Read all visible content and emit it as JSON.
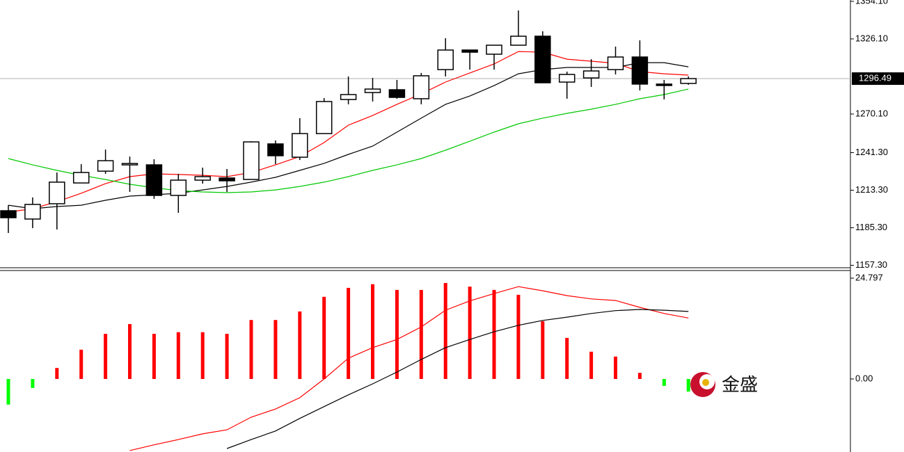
{
  "chart_data": [
    {
      "type": "candlestick",
      "up_color": "#ffffff",
      "down_color": "#000000",
      "open": [
        1198.0,
        1191.8,
        1203.2,
        1218.7,
        1227.5,
        1232.2,
        1232.2,
        1209.4,
        1220.8,
        1222.4,
        1221.3,
        1247.8,
        1237.9,
        1255.5,
        1280.9,
        1286.1,
        1288.2,
        1281.5,
        1303.2,
        1317.8,
        1314.7,
        1321.4,
        1328.1,
        1293.9,
        1297.0,
        1303.2,
        1312.6,
        1292.4,
        1292.9
      ],
      "high": [
        1202.1,
        1207.9,
        1226.5,
        1232.7,
        1243.6,
        1238.4,
        1236.4,
        1225.5,
        1230.1,
        1229.1,
        1249.8,
        1250.4,
        1267.0,
        1282.0,
        1298.1,
        1297.0,
        1295.5,
        1300.7,
        1326.6,
        1317.8,
        1321.4,
        1347.3,
        1331.8,
        1301.7,
        1311.0,
        1320.4,
        1325.0,
        1295.5,
        1298.1
      ],
      "low": [
        1181.4,
        1185.0,
        1184.0,
        1218.7,
        1225.5,
        1212.0,
        1206.8,
        1196.4,
        1218.2,
        1212.0,
        1221.3,
        1232.7,
        1235.8,
        1255.5,
        1277.3,
        1279.4,
        1281.5,
        1277.3,
        1298.1,
        1303.2,
        1303.2,
        1321.4,
        1293.4,
        1281.5,
        1290.3,
        1299.6,
        1287.7,
        1281.0,
        1291.9
      ],
      "close": [
        1192.8,
        1202.7,
        1219.3,
        1226.5,
        1235.3,
        1233.2,
        1209.4,
        1220.8,
        1223.4,
        1220.3,
        1249.3,
        1239.0,
        1255.5,
        1279.4,
        1284.6,
        1288.7,
        1282.5,
        1298.6,
        1317.8,
        1316.2,
        1321.4,
        1328.1,
        1293.4,
        1299.6,
        1302.2,
        1312.6,
        1292.4,
        1291.8,
        1296.5
      ],
      "series": [
        {
          "color": "#ff0000",
          "values": [
            1197.0,
            1199.5,
            1204.7,
            1211.0,
            1218.2,
            1223.4,
            1225.5,
            1225.0,
            1224.4,
            1223.4,
            1226.5,
            1232.2,
            1238.4,
            1248.8,
            1261.8,
            1269.0,
            1277.3,
            1285.1,
            1293.9,
            1300.7,
            1307.4,
            1316.7,
            1316.2,
            1311.0,
            1309.5,
            1307.9,
            1301.7,
            1300.1,
            1299.1
          ]
        },
        {
          "color": "#000000",
          "values": [
            1202.1,
            1199.5,
            1201.1,
            1202.1,
            1205.8,
            1208.9,
            1209.9,
            1211.0,
            1213.5,
            1216.1,
            1219.3,
            1222.9,
            1228.1,
            1233.3,
            1240.0,
            1246.2,
            1256.6,
            1267.0,
            1277.3,
            1283.5,
            1291.3,
            1300.1,
            1303.2,
            1304.8,
            1304.8,
            1304.8,
            1308.4,
            1308.4,
            1305.3
          ]
        },
        {
          "color": "#00c800",
          "values": [
            1236.9,
            1232.2,
            1228.1,
            1224.4,
            1221.3,
            1217.7,
            1215.1,
            1213.0,
            1212.0,
            1211.5,
            1212.0,
            1213.5,
            1216.1,
            1219.3,
            1223.4,
            1228.1,
            1232.2,
            1236.9,
            1243.1,
            1249.8,
            1256.6,
            1262.8,
            1267.0,
            1270.6,
            1273.7,
            1277.3,
            1281.5,
            1284.6,
            1288.7
          ]
        }
      ],
      "last_price": 1296.49,
      "ylim": [
        1155.5,
        1355.1
      ],
      "yticks": [
        {
          "value": 1157.3,
          "label": "1157.30"
        },
        {
          "value": 1185.3,
          "label": "1185.30"
        },
        {
          "value": 1213.3,
          "label": "1213.30"
        },
        {
          "value": 1241.3,
          "label": "1241.30"
        },
        {
          "value": 1270.1,
          "label": "1270.10"
        },
        {
          "value": 1326.1,
          "label": "1326.10"
        },
        {
          "value": 1354.1,
          "label": "1354.10"
        }
      ]
    },
    {
      "type": "macd",
      "color": "#ff0000",
      "negative_color": "#00ff00",
      "values": [
        -6.3,
        -2.2,
        2.7,
        7.2,
        11.1,
        13.5,
        11.1,
        11.5,
        11.5,
        11.1,
        14.5,
        14.5,
        16.6,
        20.2,
        22.4,
        23.3,
        21.9,
        21.9,
        23.6,
        22.7,
        21.9,
        20.7,
        14.2,
        10.1,
        6.7,
        5.5,
        1.5,
        -1.7,
        -3.1
      ],
      "series": [
        {
          "color": "#ff0000",
          "values": [
            null,
            null,
            null,
            null,
            null,
            -17.6,
            -16.2,
            -14.9,
            -13.5,
            -12.5,
            -9.4,
            -7.4,
            -4.6,
            0,
            5.1,
            7.7,
            9.7,
            12.8,
            16.9,
            19.2,
            21.0,
            22.7,
            21.7,
            20.5,
            19.7,
            19.3,
            17.6,
            16.1,
            15.0
          ]
        },
        {
          "color": "#000000",
          "values": [
            null,
            null,
            null,
            null,
            null,
            null,
            null,
            null,
            null,
            -17.1,
            -14.9,
            -12.8,
            -9.7,
            -6.8,
            -3.9,
            -1.2,
            1.7,
            4.8,
            7.7,
            9.7,
            11.6,
            13.2,
            14.4,
            15.2,
            16.1,
            16.8,
            17.1,
            16.9,
            16.6
          ]
        }
      ],
      "ylim": [
        -17.96,
        26.5
      ],
      "yticks": [
        {
          "value": 0,
          "label": "0.00"
        },
        24.797
      ]
    }
  ],
  "watermark": "金盛"
}
